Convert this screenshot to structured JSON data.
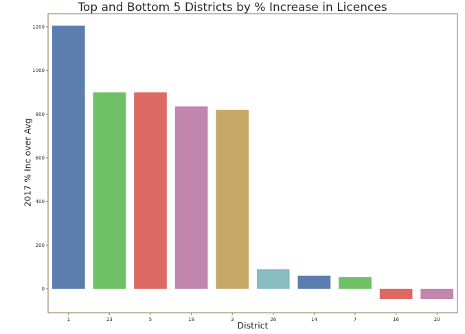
{
  "chart_data": {
    "type": "bar",
    "title": "Top and Bottom 5 Districts by % Increase in Licences",
    "xlabel": "District",
    "ylabel": "2017 % Inc over Avg",
    "categories": [
      "1",
      "23",
      "5",
      "18",
      "3",
      "26",
      "14",
      "7",
      "16",
      "20"
    ],
    "values": [
      1205,
      900,
      900,
      835,
      820,
      90,
      60,
      53,
      -47,
      -47
    ],
    "colors": [
      "#5b7eae",
      "#70c166",
      "#dc6a63",
      "#c285ae",
      "#c8a866",
      "#88bcc2",
      "#5b7eae",
      "#70c166",
      "#dc6a63",
      "#c285ae"
    ],
    "ylim": [
      -110,
      1260
    ],
    "yticks": [
      0,
      200,
      400,
      600,
      800,
      1000,
      1200
    ],
    "grid": false,
    "legend": false
  }
}
